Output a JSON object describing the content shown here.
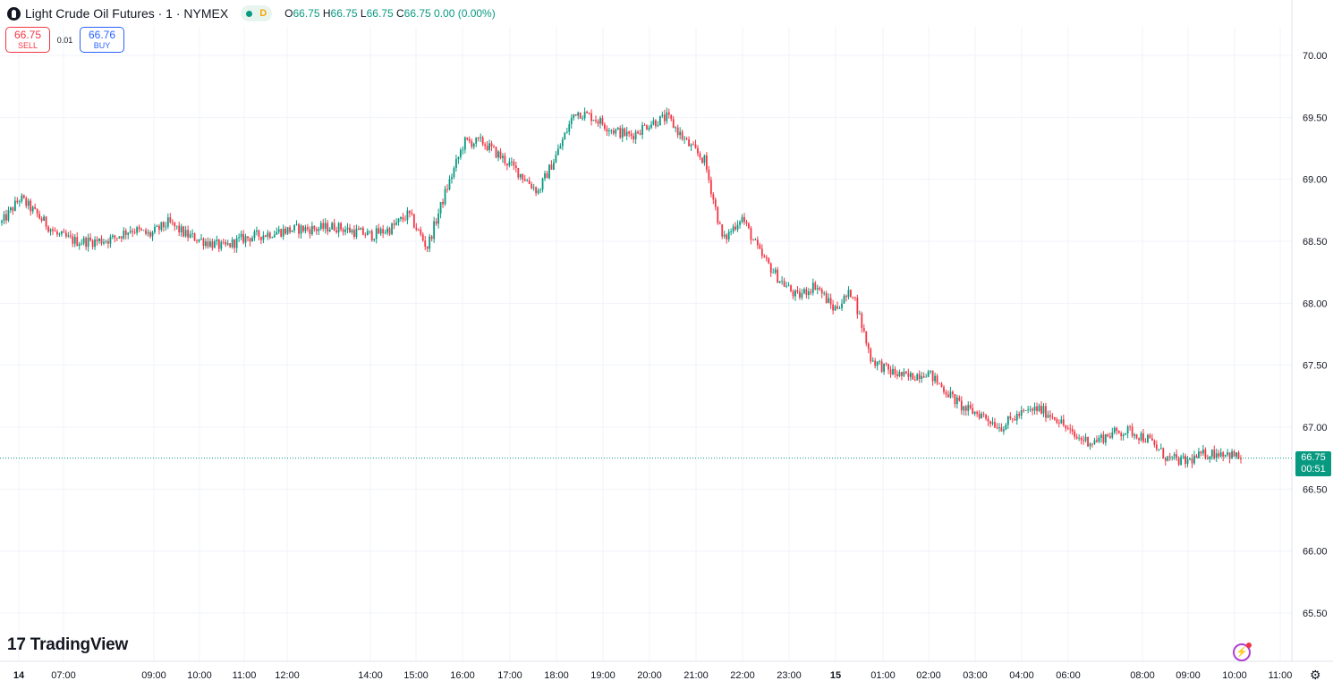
{
  "header": {
    "title": "Light Crude Oil Futures · 1 · NYMEX",
    "data_flag": "D",
    "ohlc": [
      {
        "k": "O",
        "v": "66.75"
      },
      {
        "k": "H",
        "v": "66.75"
      },
      {
        "k": "L",
        "v": "66.75"
      },
      {
        "k": "C",
        "v": "66.75"
      }
    ],
    "change": "0.00 (0.00%)"
  },
  "trade": {
    "sell_price": "66.75",
    "sell_label": "SELL",
    "spread": "0.01",
    "buy_price": "66.76",
    "buy_label": "BUY"
  },
  "last_price": {
    "price": "66.75",
    "countdown": "00:51"
  },
  "brand": "TradingView",
  "colors": {
    "up": "#089981",
    "down": "#f23645",
    "grid": "#f0f3fa",
    "text": "#131722"
  },
  "chart_data": {
    "type": "line",
    "title": "Light Crude Oil Futures · 1 · NYMEX",
    "ylim": [
      65.3,
      70.25
    ],
    "y_ticks": [
      70.0,
      69.5,
      69.0,
      68.5,
      68.0,
      67.5,
      67.0,
      66.5,
      66.0,
      65.5
    ],
    "x_ticks": [
      "14",
      "07:00",
      "09:00",
      "10:00",
      "11:00",
      "12:00",
      "14:00",
      "15:00",
      "16:00",
      "17:00",
      "18:00",
      "19:00",
      "20:00",
      "21:00",
      "22:00",
      "23:00",
      "15",
      "01:00",
      "02:00",
      "03:00",
      "04:00",
      "06:00",
      "08:00",
      "09:00",
      "10:00",
      "11:00"
    ],
    "last_value": 66.75,
    "grid": true,
    "series": [
      {
        "values": [
          68.65,
          68.85,
          68.7,
          68.55,
          68.5,
          68.5,
          68.52,
          68.6,
          68.55,
          68.65,
          68.55,
          68.5,
          68.45,
          68.52,
          68.55,
          68.58,
          68.6,
          68.6,
          68.62,
          68.58,
          68.55,
          68.6,
          68.72,
          68.45,
          68.9,
          69.3,
          69.3,
          69.18,
          69.05,
          68.9,
          69.2,
          69.55,
          69.5,
          69.4,
          69.35,
          69.45,
          69.5,
          69.3,
          69.15,
          68.5,
          68.7,
          68.4,
          68.2,
          68.05,
          68.15,
          67.95,
          68.1,
          67.55,
          67.45,
          67.4,
          67.45,
          67.3,
          67.15,
          67.1,
          67.0,
          67.1,
          67.15,
          67.08,
          66.92,
          66.88,
          66.95,
          66.97,
          66.9,
          66.75,
          66.72,
          66.78,
          66.8,
          66.75
        ]
      }
    ]
  }
}
